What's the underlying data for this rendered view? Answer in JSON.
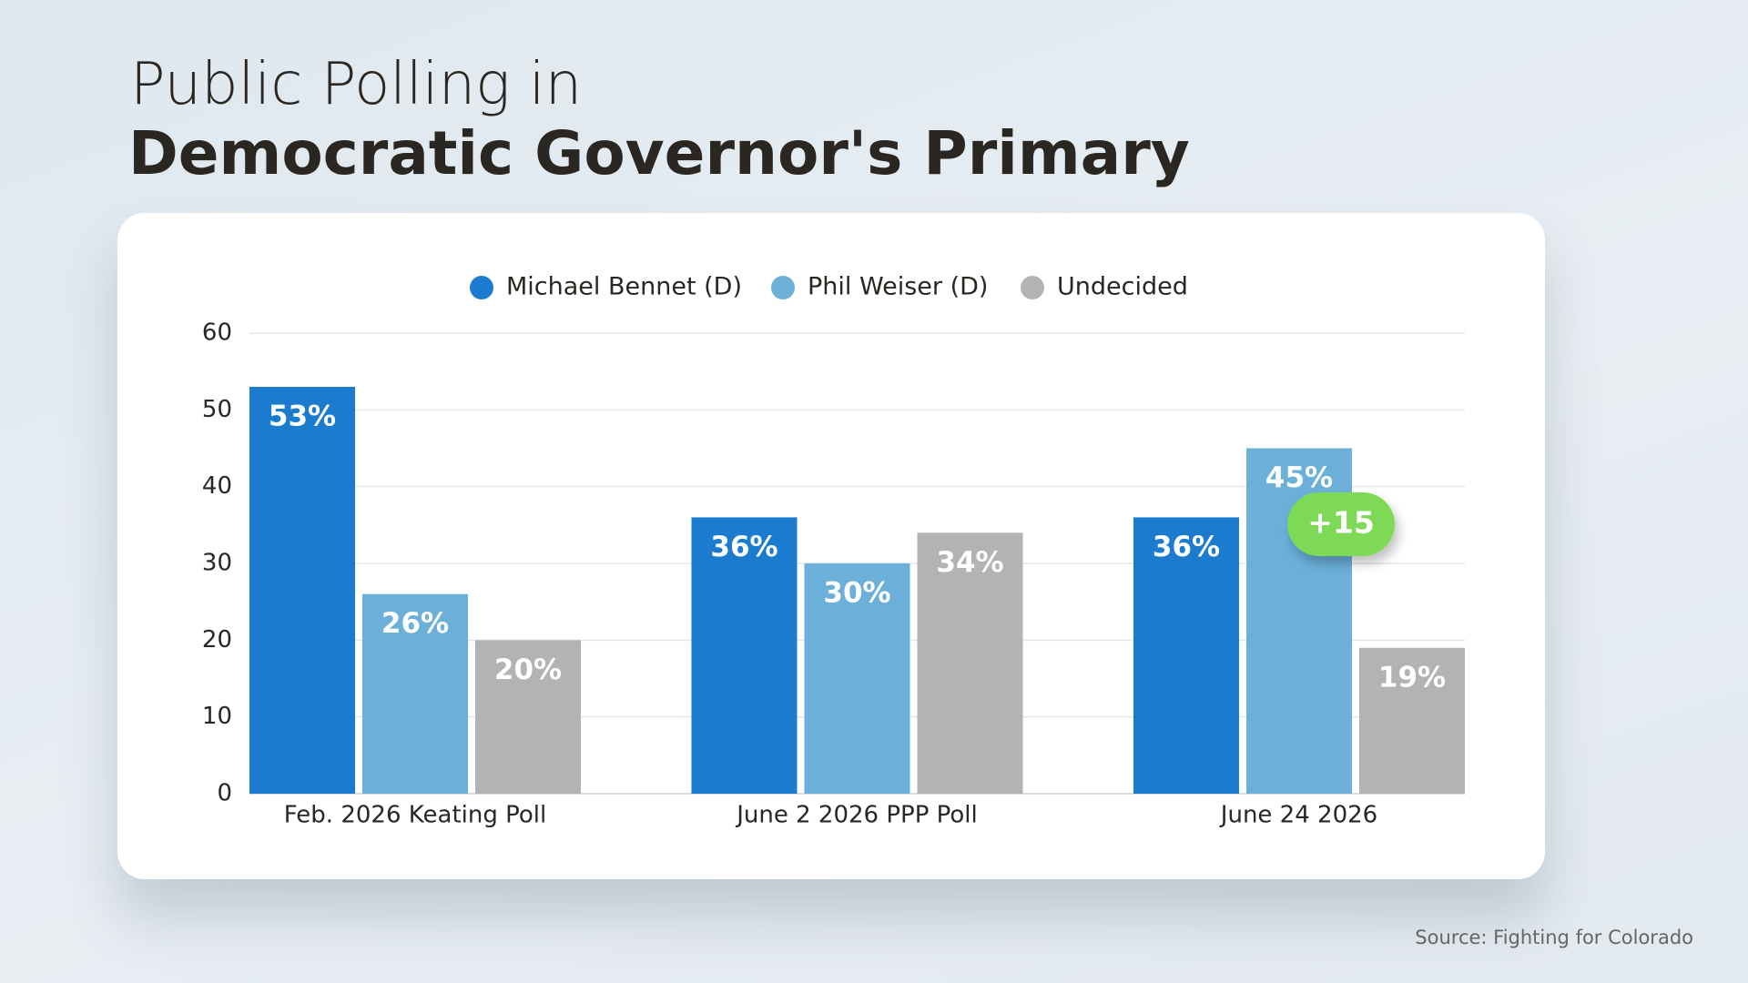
{
  "header": {
    "title_line1": "Public Polling in",
    "title_line2": "Democratic Governor's Primary"
  },
  "chart_data": {
    "type": "bar",
    "categories": [
      "Feb. 2026 Keating Poll",
      "June 2 2026 PPP Poll",
      "June 24 2026"
    ],
    "series": [
      {
        "name": "Michael Bennet (D)",
        "color": "#1b7bcf",
        "values": [
          53,
          36,
          36
        ],
        "value_labels": [
          "53%",
          "36%",
          "36%"
        ]
      },
      {
        "name": "Phil Weiser (D)",
        "color": "#6cb0da",
        "values": [
          26,
          30,
          45
        ],
        "value_labels": [
          "26%",
          "30%",
          "45%"
        ]
      },
      {
        "name": "Undecided",
        "color": "#b3b3b3",
        "values": [
          20,
          34,
          19
        ],
        "value_labels": [
          "20%",
          "34%",
          "19%"
        ]
      }
    ],
    "ylim": [
      0,
      60
    ],
    "yticks": [
      0,
      10,
      20,
      30,
      40,
      50,
      60
    ],
    "grid": true,
    "legend": "top",
    "annotation": {
      "text": "+15",
      "color": "#7ed957"
    }
  },
  "footer": {
    "source": "Source: Fighting for Colorado"
  }
}
